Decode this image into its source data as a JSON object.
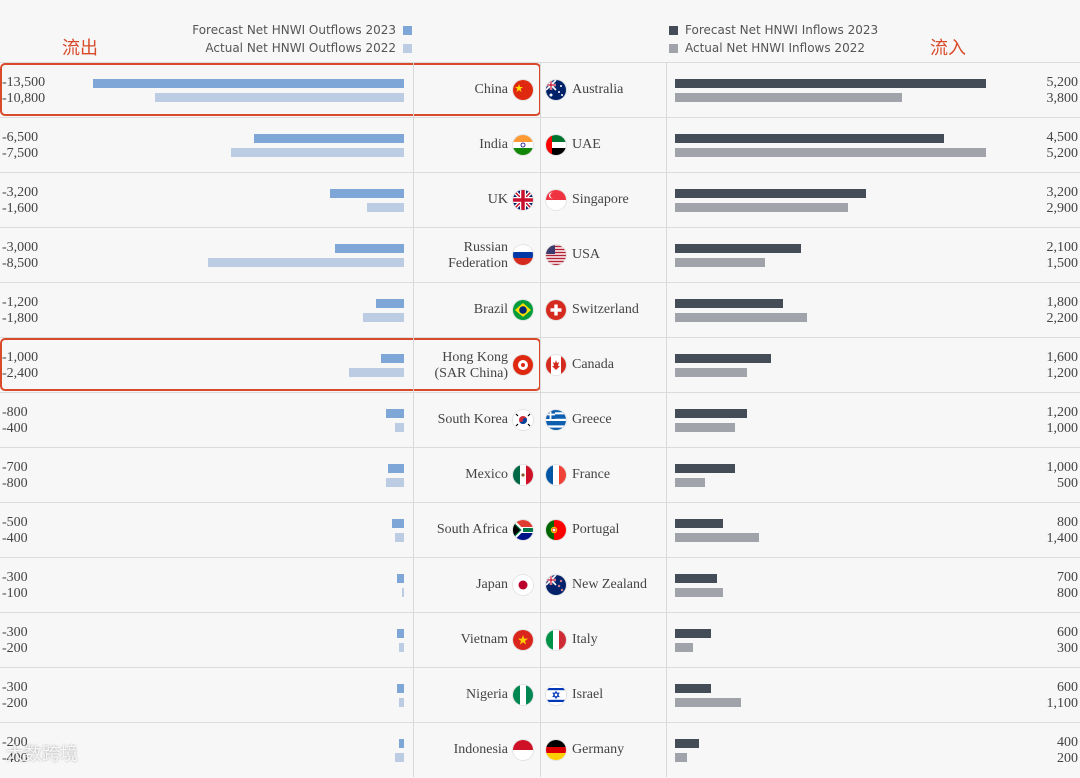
{
  "labels": {
    "outflow_cn": "流出",
    "inflow_cn": "流入",
    "watermark": "大数跨境"
  },
  "colors": {
    "outflow_2023": "#7ea6d6",
    "outflow_2022": "#bccde3",
    "inflow_2023": "#434c57",
    "inflow_2022": "#a0a4aa",
    "highlight": "#d84a2a"
  },
  "chart_data": {
    "type": "bar",
    "orientation": "horizontal-diverging",
    "legend": {
      "outflow_2023": "Forecast Net HNWI Outflows 2023",
      "outflow_2022": "Actual Net HNWI Outflows 2022",
      "inflow_2023": "Forecast Net HNWI Inflows 2023",
      "inflow_2022": "Actual Net HNWI Inflows 2022"
    },
    "outflows": [
      {
        "country": [
          "China"
        ],
        "flag": "china-flag",
        "f2023": -13500,
        "a2022": -10800,
        "f2023_label": "-13,500",
        "a2022_label": "-10,800"
      },
      {
        "country": [
          "India"
        ],
        "flag": "india-flag",
        "f2023": -6500,
        "a2022": -7500,
        "f2023_label": "-6,500",
        "a2022_label": "-7,500"
      },
      {
        "country": [
          "UK"
        ],
        "flag": "uk-flag",
        "f2023": -3200,
        "a2022": -1600,
        "f2023_label": "-3,200",
        "a2022_label": "-1,600"
      },
      {
        "country": [
          "Russian",
          "Federation"
        ],
        "flag": "russia-flag",
        "f2023": -3000,
        "a2022": -8500,
        "f2023_label": "-3,000",
        "a2022_label": "-8,500"
      },
      {
        "country": [
          "Brazil"
        ],
        "flag": "brazil-flag",
        "f2023": -1200,
        "a2022": -1800,
        "f2023_label": "-1,200",
        "a2022_label": "-1,800"
      },
      {
        "country": [
          "Hong Kong",
          "(SAR China)"
        ],
        "flag": "hong-kong-flag",
        "f2023": -1000,
        "a2022": -2400,
        "f2023_label": "-1,000",
        "a2022_label": "-2,400"
      },
      {
        "country": [
          "South Korea"
        ],
        "flag": "south-korea-flag",
        "f2023": -800,
        "a2022": -400,
        "f2023_label": "-800",
        "a2022_label": "-400"
      },
      {
        "country": [
          "Mexico"
        ],
        "flag": "mexico-flag",
        "f2023": -700,
        "a2022": -800,
        "f2023_label": "-700",
        "a2022_label": "-800"
      },
      {
        "country": [
          "South Africa"
        ],
        "flag": "south-africa-flag",
        "f2023": -500,
        "a2022": -400,
        "f2023_label": "-500",
        "a2022_label": "-400"
      },
      {
        "country": [
          "Japan"
        ],
        "flag": "japan-flag",
        "f2023": -300,
        "a2022": -100,
        "f2023_label": "-300",
        "a2022_label": "-100"
      },
      {
        "country": [
          "Vietnam"
        ],
        "flag": "vietnam-flag",
        "f2023": -300,
        "a2022": -200,
        "f2023_label": "-300",
        "a2022_label": "-200"
      },
      {
        "country": [
          "Nigeria"
        ],
        "flag": "nigeria-flag",
        "f2023": -300,
        "a2022": -200,
        "f2023_label": "-300",
        "a2022_label": "-200"
      },
      {
        "country": [
          "Indonesia"
        ],
        "flag": "indonesia-flag",
        "f2023": -200,
        "a2022": -400,
        "f2023_label": "-200",
        "a2022_label": "-400"
      }
    ],
    "inflows": [
      {
        "country": [
          "Australia"
        ],
        "flag": "australia-flag",
        "f2023": 5200,
        "a2022": 3800,
        "f2023_label": "5,200",
        "a2022_label": "3,800"
      },
      {
        "country": [
          "UAE"
        ],
        "flag": "uae-flag",
        "f2023": 4500,
        "a2022": 5200,
        "f2023_label": "4,500",
        "a2022_label": "5,200"
      },
      {
        "country": [
          "Singapore"
        ],
        "flag": "singapore-flag",
        "f2023": 3200,
        "a2022": 2900,
        "f2023_label": "3,200",
        "a2022_label": "2,900"
      },
      {
        "country": [
          "USA"
        ],
        "flag": "usa-flag",
        "f2023": 2100,
        "a2022": 1500,
        "f2023_label": "2,100",
        "a2022_label": "1,500"
      },
      {
        "country": [
          "Switzerland"
        ],
        "flag": "switzerland-flag",
        "f2023": 1800,
        "a2022": 2200,
        "f2023_label": "1,800",
        "a2022_label": "2,200"
      },
      {
        "country": [
          "Canada"
        ],
        "flag": "canada-flag",
        "f2023": 1600,
        "a2022": 1200,
        "f2023_label": "1,600",
        "a2022_label": "1,200"
      },
      {
        "country": [
          "Greece"
        ],
        "flag": "greece-flag",
        "f2023": 1200,
        "a2022": 1000,
        "f2023_label": "1,200",
        "a2022_label": "1,000"
      },
      {
        "country": [
          "France"
        ],
        "flag": "france-flag",
        "f2023": 1000,
        "a2022": 500,
        "f2023_label": "1,000",
        "a2022_label": "500"
      },
      {
        "country": [
          "Portugal"
        ],
        "flag": "portugal-flag",
        "f2023": 800,
        "a2022": 1400,
        "f2023_label": "800",
        "a2022_label": "1,400"
      },
      {
        "country": [
          "New Zealand"
        ],
        "flag": "new-zealand-flag",
        "f2023": 700,
        "a2022": 800,
        "f2023_label": "700",
        "a2022_label": "800"
      },
      {
        "country": [
          "Italy"
        ],
        "flag": "italy-flag",
        "f2023": 600,
        "a2022": 300,
        "f2023_label": "600",
        "a2022_label": "300"
      },
      {
        "country": [
          "Israel"
        ],
        "flag": "israel-flag",
        "f2023": 600,
        "a2022": 1100,
        "f2023_label": "600",
        "a2022_label": "1,100"
      },
      {
        "country": [
          "Germany"
        ],
        "flag": "germany-flag",
        "f2023": 400,
        "a2022": 200,
        "f2023_label": "400",
        "a2022_label": "200"
      }
    ],
    "highlighted_outflow_countries": [
      "China",
      "Hong Kong"
    ],
    "grid": false
  }
}
